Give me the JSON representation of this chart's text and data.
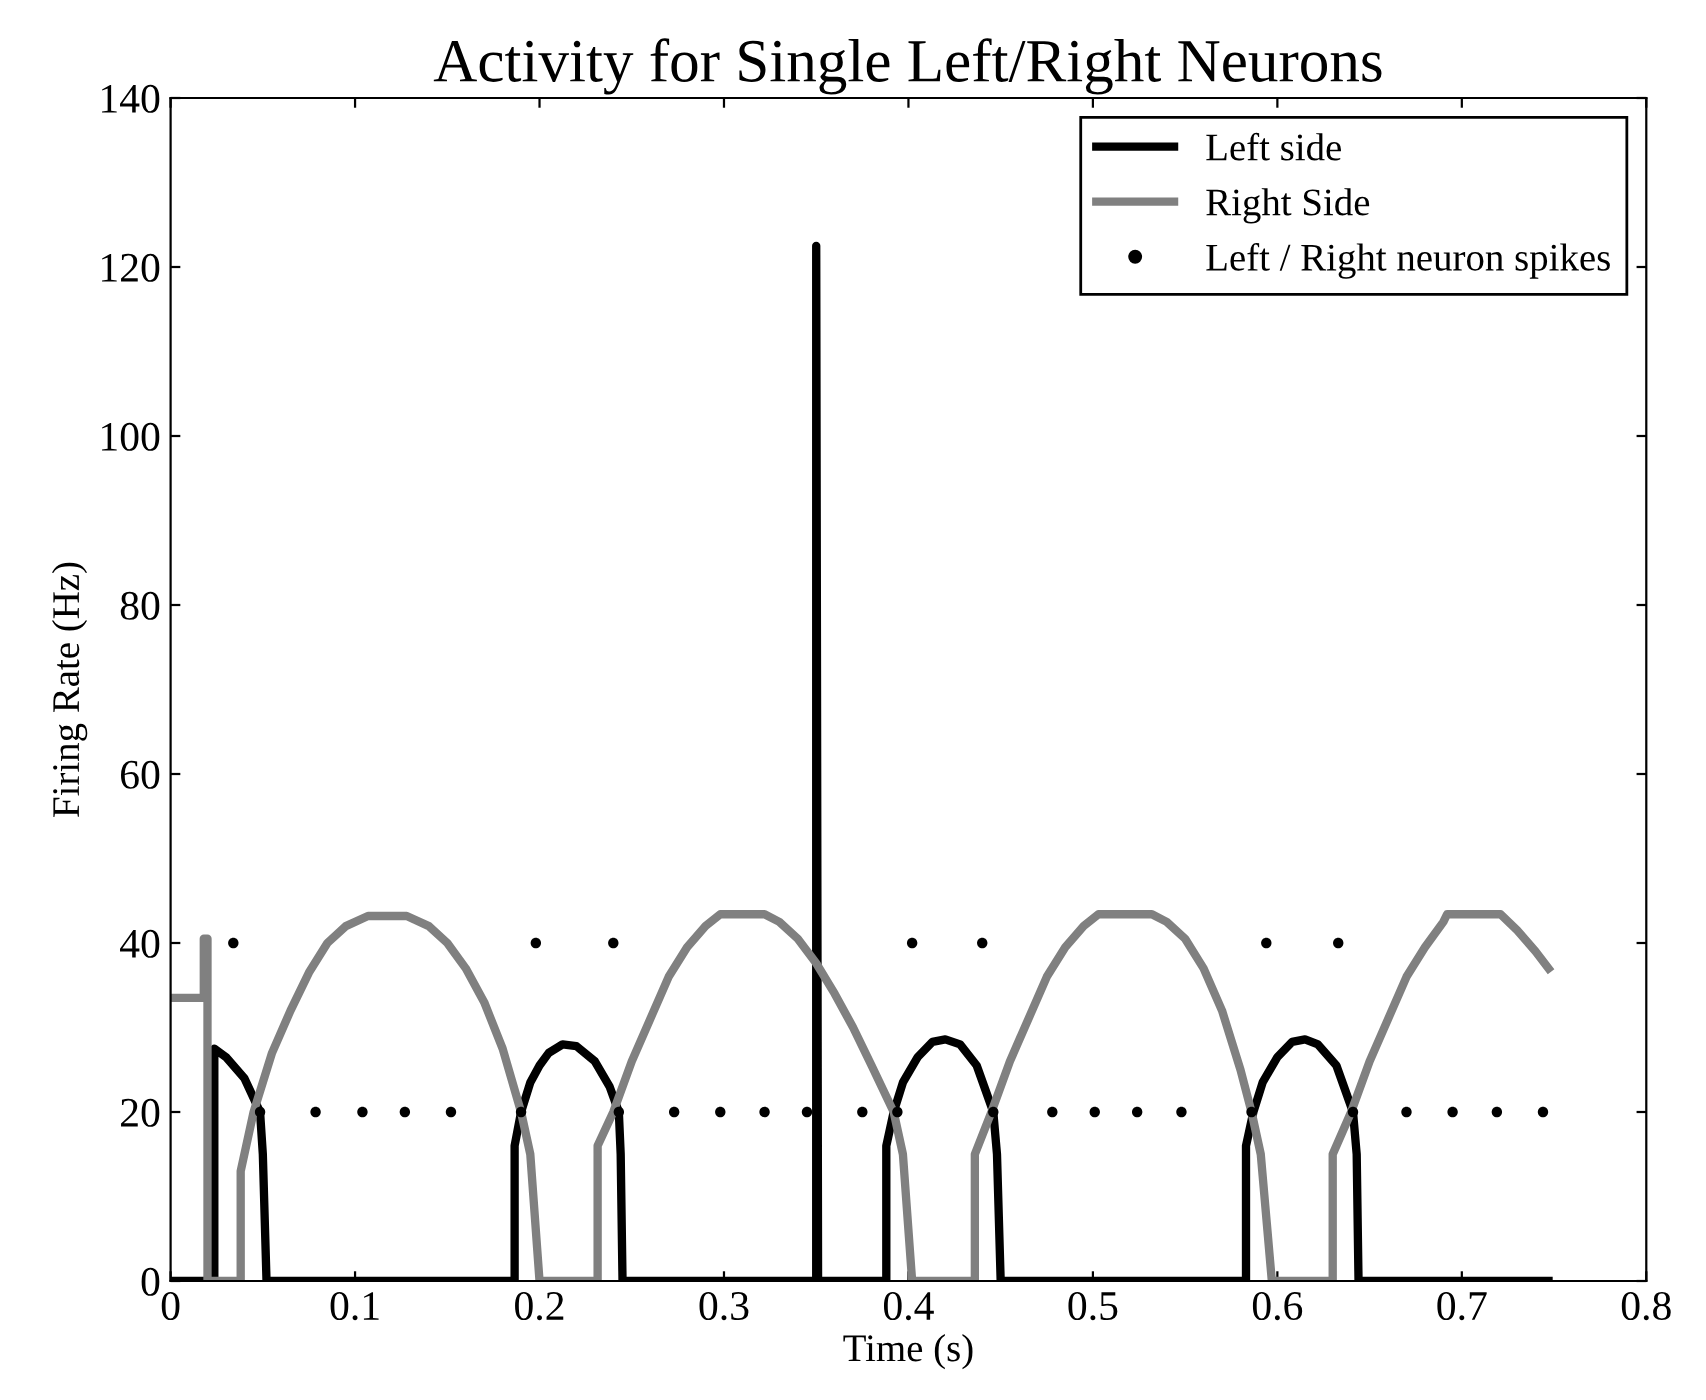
{
  "chart_data": {
    "type": "line",
    "title": "Activity for Single Left/Right Neurons",
    "xlabel": "Time (s)",
    "ylabel": "Firing Rate (Hz)",
    "xlim": [
      0,
      0.8
    ],
    "xticks": [
      0,
      0.1,
      0.2,
      0.3,
      0.4,
      0.5,
      0.6,
      0.7,
      0.8
    ],
    "ylim": [
      0,
      140
    ],
    "yticks": [
      0,
      20,
      40,
      60,
      80,
      100,
      120,
      140
    ],
    "grid": false,
    "legend": "top right",
    "line_style": "solid",
    "series": [
      {
        "name": "Left side",
        "color": "#000000",
        "x": [
          0,
          0.0237,
          0.0237,
          0.03,
          0.04,
          0.0485,
          0.05,
          0.052,
          0.1865,
          0.1865,
          0.19,
          0.195,
          0.2,
          0.205,
          0.2125,
          0.22,
          0.23,
          0.238,
          0.243,
          0.244,
          0.245,
          0.35,
          0.35,
          0.351,
          0.388,
          0.388,
          0.392,
          0.397,
          0.405,
          0.413,
          0.42,
          0.428,
          0.437,
          0.446,
          0.448,
          0.45,
          0.583,
          0.583,
          0.587,
          0.592,
          0.6,
          0.608,
          0.615,
          0.622,
          0.632,
          0.641,
          0.643,
          0.644,
          0.747
        ],
        "values": [
          0,
          0,
          27.5,
          26.5,
          24,
          20,
          15,
          0,
          0,
          16,
          20,
          23.5,
          25.5,
          27,
          28,
          27.8,
          26,
          23,
          20,
          15,
          0,
          0,
          122.5,
          0,
          0,
          16,
          20,
          23.5,
          26.5,
          28.3,
          28.6,
          28,
          25.5,
          20,
          15,
          0,
          0,
          16,
          20,
          23.5,
          26.5,
          28.3,
          28.6,
          28,
          25.5,
          20,
          15,
          0,
          0
        ]
      },
      {
        "name": "Right Side",
        "color": "#808080",
        "x": [
          0,
          0.018,
          0.018,
          0.02,
          0.02,
          0.038,
          0.038,
          0.045,
          0.055,
          0.065,
          0.075,
          0.085,
          0.095,
          0.107,
          0.128,
          0.14,
          0.15,
          0.16,
          0.17,
          0.18,
          0.19,
          0.195,
          0.2,
          0.2315,
          0.2315,
          0.24,
          0.25,
          0.26,
          0.27,
          0.28,
          0.29,
          0.298,
          0.322,
          0.33,
          0.34,
          0.35,
          0.36,
          0.37,
          0.38,
          0.392,
          0.397,
          0.402,
          0.436,
          0.436,
          0.445,
          0.455,
          0.465,
          0.475,
          0.485,
          0.495,
          0.503,
          0.532,
          0.54,
          0.55,
          0.56,
          0.57,
          0.58,
          0.586,
          0.591,
          0.597,
          0.63,
          0.63,
          0.64,
          0.65,
          0.66,
          0.67,
          0.68,
          0.69,
          0.692,
          0.721,
          0.73,
          0.74,
          0.747
        ],
        "values": [
          33.5,
          33.5,
          40.5,
          40.5,
          0,
          0,
          13,
          20,
          27,
          32,
          36.5,
          40,
          42,
          43.2,
          43.2,
          42,
          40,
          37,
          33,
          27.5,
          20,
          15,
          0,
          0,
          16,
          20,
          26,
          31,
          36,
          39.5,
          42,
          43.4,
          43.4,
          42.5,
          40.5,
          37.6,
          34,
          30,
          25.5,
          20,
          15,
          0,
          0,
          15,
          20,
          26,
          31,
          36,
          39.5,
          42,
          43.4,
          43.4,
          42.5,
          40.5,
          37,
          32,
          25,
          20,
          15,
          0,
          0,
          15,
          20,
          26,
          31,
          36,
          39.5,
          42.5,
          43.4,
          43.4,
          41.5,
          39,
          37
        ]
      },
      {
        "name": "Left / Right neuron spikes",
        "type": "scatter",
        "marker": "circle",
        "color": "#000000",
        "x": [
          0.0485,
          0.0786,
          0.104,
          0.127,
          0.152,
          0.19,
          0.243,
          0.273,
          0.298,
          0.322,
          0.345,
          0.375,
          0.394,
          0.446,
          0.478,
          0.501,
          0.524,
          0.548,
          0.586,
          0.641,
          0.67,
          0.695,
          0.719,
          0.744,
          0.034,
          0.198,
          0.24,
          0.402,
          0.44,
          0.594,
          0.633
        ],
        "values": [
          20,
          20,
          20,
          20,
          20,
          20,
          20,
          20,
          20,
          20,
          20,
          20,
          20,
          20,
          20,
          20,
          20,
          20,
          20,
          20,
          20,
          20,
          20,
          20,
          40,
          40,
          40,
          40,
          40,
          40,
          40
        ]
      }
    ]
  }
}
